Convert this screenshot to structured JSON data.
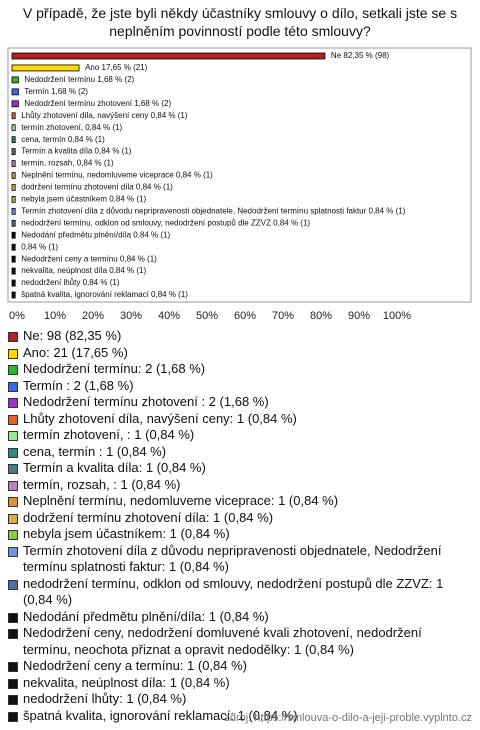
{
  "chart_data": {
    "type": "bar",
    "orientation": "horizontal",
    "title": "V případě, že jste byli někdy účastníky smlouvy o dílo, setkali jste se s neplněním povinností podle této smlouvy?",
    "values": [
      82.35,
      17.65,
      1.68,
      1.68,
      1.68,
      0.84,
      0.84,
      0.84,
      0.84,
      0.84,
      0.84,
      0.84,
      0.84,
      0.84,
      0.84,
      0.84,
      0.84,
      0.84,
      0.84,
      0.84,
      0.84
    ],
    "value_labels": [
      "Ne 82,35 % (98)",
      "Ano 17,65 % (21)",
      "Nedodržení termínu 1,68 % (2)",
      "Termín  1,68 % (2)",
      "Nedodržení termínu zhotovení  1,68 % (2)",
      "Lhůty zhotovení díla, navýšení ceny 0,84 % (1)",
      "termín zhotovení,  0,84 % (1)",
      "cena, termín  0,84 % (1)",
      "Termín a kvalita díla 0,84 % (1)",
      "termín, rozsah,  0,84 % (1)",
      "Neplnění termínu, nedomluveme viceprace 0,84 % (1)",
      "dodržení termínu zhotovení díla 0,84 % (1)",
      "nebyla jsem účastníkem 0,84 % (1)",
      "Termín zhotovení díla z důvodu nepripravenosti objednatele, Nedodržení termínu splatnosti faktur 0,84 % (1)",
      "nedodržení termínu, odklon od smlouvy, nedodržení postupů dle ZZVZ 0,84 % (1)",
      "Nedodání předmětu plnění/díla 0,84 % (1)",
      "0,84 % (1)",
      "Nedodržení ceny a termínu 0,84 % (1)",
      "nekvalita, neúplnost díla 0,84 % (1)",
      "nedodržení lhůty 0,84 % (1)",
      "špatná kvalita, ignorování reklamací 0,84 % (1)"
    ],
    "legend_labels": [
      "Ne: 98 (82,35 %)",
      "Ano: 21 (17,65 %)",
      "Nedodržení termínu: 2 (1,68 %)",
      "Termín : 2 (1,68 %)",
      "Nedodržení termínu zhotovení : 2 (1,68 %)",
      "Lhůty zhotovení díla, navýšení ceny: 1 (0,84 %)",
      "termín zhotovení, : 1 (0,84 %)",
      "cena, termín : 1 (0,84 %)",
      "Termín a kvalita díla: 1 (0,84 %)",
      "termín, rozsah, : 1 (0,84 %)",
      "Neplnění termínu, nedomluveme viceprace: 1 (0,84 %)",
      "dodržení termínu zhotovení díla: 1 (0,84 %)",
      "nebyla jsem účastníkem: 1 (0,84 %)",
      "Termín zhotovení díla z důvodu nepripravenosti objednatele, Nedodržení termínu splatnosti faktur: 1 (0,84 %)",
      "nedodržení termínu, odklon od smlouvy, nedodržení postupů dle ZZVZ: 1 (0,84 %)",
      "Nedodání předmětu plnění/díla: 1 (0,84 %)",
      "Nedodržení ceny, nedodržení domluvené kvali zhotovení, nedodržení termínu, neochota přiznat a opravit nedodělky: 1 (0,84 %)",
      "Nedodržení ceny a termínu: 1 (0,84 %)",
      "nekvalita, neúplnost díla: 1 (0,84 %)",
      "nedodržení lhůty: 1 (0,84 %)",
      "špatná kvalita, ignorování reklamací: 1 (0,84 %)"
    ],
    "colors": [
      "#b22222",
      "#ffd700",
      "#32b432",
      "#4169e1",
      "#9932cc",
      "#e8602c",
      "#98e898",
      "#2e8b7a",
      "#4a7a8c",
      "#c080c0",
      "#e0903c",
      "#d8b040",
      "#80d040",
      "#7090e0",
      "#5070a0",
      "#111111",
      "#111111",
      "#111111",
      "#111111",
      "#111111",
      "#111111"
    ],
    "xlim": [
      0,
      120
    ],
    "xticks": [
      {
        "value": 0,
        "label": "0%"
      },
      {
        "value": 10,
        "label": "10%"
      },
      {
        "value": 20,
        "label": "20%"
      },
      {
        "value": 30,
        "label": "30%"
      },
      {
        "value": 40,
        "label": "40%"
      },
      {
        "value": 50,
        "label": "50%"
      },
      {
        "value": 60,
        "label": "60%"
      },
      {
        "value": 70,
        "label": "70%"
      },
      {
        "value": 80,
        "label": "80%"
      },
      {
        "value": 90,
        "label": "90%"
      },
      {
        "value": 100,
        "label": "100%"
      }
    ],
    "source": "zdroj: https://smlouva-o-dilo-a-jeji-proble.vyplnto.cz"
  }
}
